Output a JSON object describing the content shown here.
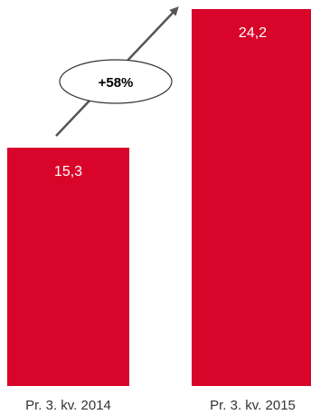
{
  "chart_data": {
    "type": "bar",
    "categories": [
      "Pr. 3. kv. 2014",
      "Pr. 3. kv. 2015"
    ],
    "values": [
      15.3,
      24.2
    ],
    "value_labels": [
      "15,3",
      "24,2"
    ],
    "ylim": [
      0,
      24.2
    ],
    "grid": false,
    "colors": {
      "bar": "#d90429",
      "arrow": "#555555",
      "bubble_fill": "#ffffff",
      "bubble_stroke": "#333333"
    },
    "annotation": {
      "text": "+58%"
    }
  }
}
